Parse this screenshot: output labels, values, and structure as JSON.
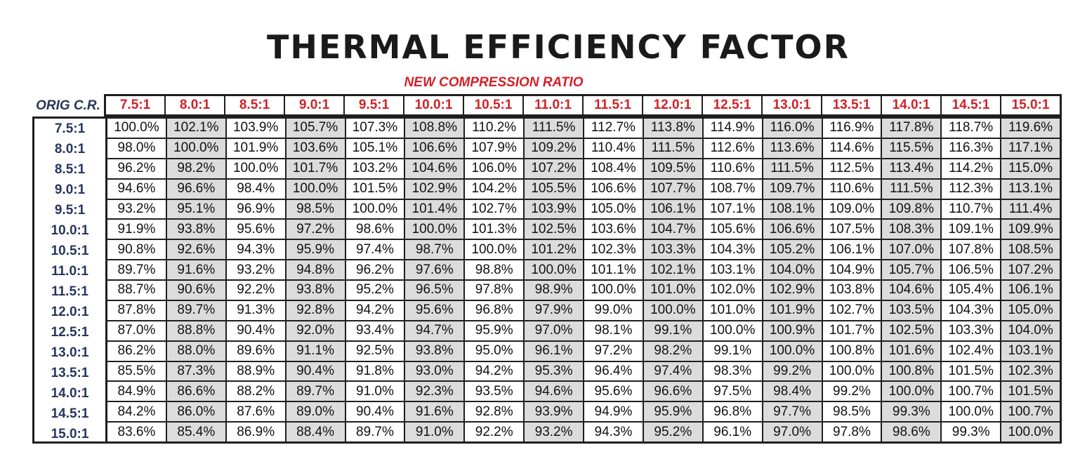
{
  "title": "THERMAL EFFICIENCY FACTOR",
  "subtitle": "NEW COMPRESSION RATIO",
  "row_axis_label": "ORIG C.R.",
  "colors": {
    "header_red": "#d42027",
    "row_navy": "#26365d",
    "shade": "#dcdcdc"
  },
  "columns": [
    "7.5:1",
    "8.0:1",
    "8.5:1",
    "9.0:1",
    "9.5:1",
    "10.0:1",
    "10.5:1",
    "11.0:1",
    "11.5:1",
    "12.0:1",
    "12.5:1",
    "13.0:1",
    "13.5:1",
    "14.0:1",
    "14.5:1",
    "15.0:1"
  ],
  "rows": [
    {
      "label": "7.5:1",
      "values": [
        "100.0%",
        "102.1%",
        "103.9%",
        "105.7%",
        "107.3%",
        "108.8%",
        "110.2%",
        "111.5%",
        "112.7%",
        "113.8%",
        "114.9%",
        "116.0%",
        "116.9%",
        "117.8%",
        "118.7%",
        "119.6%"
      ]
    },
    {
      "label": "8.0:1",
      "values": [
        "98.0%",
        "100.0%",
        "101.9%",
        "103.6%",
        "105.1%",
        "106.6%",
        "107.9%",
        "109.2%",
        "110.4%",
        "111.5%",
        "112.6%",
        "113.6%",
        "114.6%",
        "115.5%",
        "116.3%",
        "117.1%"
      ]
    },
    {
      "label": "8.5:1",
      "values": [
        "96.2%",
        "98.2%",
        "100.0%",
        "101.7%",
        "103.2%",
        "104.6%",
        "106.0%",
        "107.2%",
        "108.4%",
        "109.5%",
        "110.6%",
        "111.5%",
        "112.5%",
        "113.4%",
        "114.2%",
        "115.0%"
      ]
    },
    {
      "label": "9.0:1",
      "values": [
        "94.6%",
        "96.6%",
        "98.4%",
        "100.0%",
        "101.5%",
        "102.9%",
        "104.2%",
        "105.5%",
        "106.6%",
        "107.7%",
        "108.7%",
        "109.7%",
        "110.6%",
        "111.5%",
        "112.3%",
        "113.1%"
      ]
    },
    {
      "label": "9.5:1",
      "values": [
        "93.2%",
        "95.1%",
        "96.9%",
        "98.5%",
        "100.0%",
        "101.4%",
        "102.7%",
        "103.9%",
        "105.0%",
        "106.1%",
        "107.1%",
        "108.1%",
        "109.0%",
        "109.8%",
        "110.7%",
        "111.4%"
      ]
    },
    {
      "label": "10.0:1",
      "values": [
        "91.9%",
        "93.8%",
        "95.6%",
        "97.2%",
        "98.6%",
        "100.0%",
        "101.3%",
        "102.5%",
        "103.6%",
        "104.7%",
        "105.6%",
        "106.6%",
        "107.5%",
        "108.3%",
        "109.1%",
        "109.9%"
      ]
    },
    {
      "label": "10.5:1",
      "values": [
        "90.8%",
        "92.6%",
        "94.3%",
        "95.9%",
        "97.4%",
        "98.7%",
        "100.0%",
        "101.2%",
        "102.3%",
        "103.3%",
        "104.3%",
        "105.2%",
        "106.1%",
        "107.0%",
        "107.8%",
        "108.5%"
      ]
    },
    {
      "label": "11.0:1",
      "values": [
        "89.7%",
        "91.6%",
        "93.2%",
        "94.8%",
        "96.2%",
        "97.6%",
        "98.8%",
        "100.0%",
        "101.1%",
        "102.1%",
        "103.1%",
        "104.0%",
        "104.9%",
        "105.7%",
        "106.5%",
        "107.2%"
      ]
    },
    {
      "label": "11.5:1",
      "values": [
        "88.7%",
        "90.6%",
        "92.2%",
        "93.8%",
        "95.2%",
        "96.5%",
        "97.8%",
        "98.9%",
        "100.0%",
        "101.0%",
        "102.0%",
        "102.9%",
        "103.8%",
        "104.6%",
        "105.4%",
        "106.1%"
      ]
    },
    {
      "label": "12.0:1",
      "values": [
        "87.8%",
        "89.7%",
        "91.3%",
        "92.8%",
        "94.2%",
        "95.6%",
        "96.8%",
        "97.9%",
        "99.0%",
        "100.0%",
        "101.0%",
        "101.9%",
        "102.7%",
        "103.5%",
        "104.3%",
        "105.0%"
      ]
    },
    {
      "label": "12.5:1",
      "values": [
        "87.0%",
        "88.8%",
        "90.4%",
        "92.0%",
        "93.4%",
        "94.7%",
        "95.9%",
        "97.0%",
        "98.1%",
        "99.1%",
        "100.0%",
        "100.9%",
        "101.7%",
        "102.5%",
        "103.3%",
        "104.0%"
      ]
    },
    {
      "label": "13.0:1",
      "values": [
        "86.2%",
        "88.0%",
        "89.6%",
        "91.1%",
        "92.5%",
        "93.8%",
        "95.0%",
        "96.1%",
        "97.2%",
        "98.2%",
        "99.1%",
        "100.0%",
        "100.8%",
        "101.6%",
        "102.4%",
        "103.1%"
      ]
    },
    {
      "label": "13.5:1",
      "values": [
        "85.5%",
        "87.3%",
        "88.9%",
        "90.4%",
        "91.8%",
        "93.0%",
        "94.2%",
        "95.3%",
        "96.4%",
        "97.4%",
        "98.3%",
        "99.2%",
        "100.0%",
        "100.8%",
        "101.5%",
        "102.3%"
      ]
    },
    {
      "label": "14.0:1",
      "values": [
        "84.9%",
        "86.6%",
        "88.2%",
        "89.7%",
        "91.0%",
        "92.3%",
        "93.5%",
        "94.6%",
        "95.6%",
        "96.6%",
        "97.5%",
        "98.4%",
        "99.2%",
        "100.0%",
        "100.7%",
        "101.5%"
      ]
    },
    {
      "label": "14.5:1",
      "values": [
        "84.2%",
        "86.0%",
        "87.6%",
        "89.0%",
        "90.4%",
        "91.6%",
        "92.8%",
        "93.9%",
        "94.9%",
        "95.9%",
        "96.8%",
        "97.7%",
        "98.5%",
        "99.3%",
        "100.0%",
        "100.7%"
      ]
    },
    {
      "label": "15.0:1",
      "values": [
        "83.6%",
        "85.4%",
        "86.9%",
        "88.4%",
        "89.7%",
        "91.0%",
        "92.2%",
        "93.2%",
        "94.3%",
        "95.2%",
        "96.1%",
        "97.0%",
        "97.8%",
        "98.6%",
        "99.3%",
        "100.0%"
      ]
    }
  ]
}
